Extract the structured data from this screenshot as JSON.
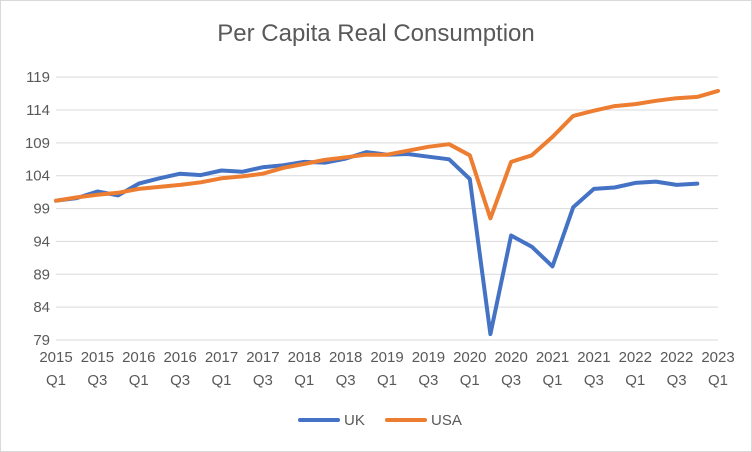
{
  "chart_data": {
    "type": "line",
    "title": "Per Capita Real Consumption",
    "xlabel": "",
    "ylabel": "",
    "ylim": [
      79,
      121
    ],
    "yticks": [
      79,
      84,
      89,
      94,
      99,
      104,
      109,
      114,
      119
    ],
    "grid": "horizontal",
    "legend_position": "bottom",
    "categories": [
      "2015 Q1",
      "2015 Q2",
      "2015 Q3",
      "2015 Q4",
      "2016 Q1",
      "2016 Q2",
      "2016 Q3",
      "2016 Q4",
      "2017 Q1",
      "2017 Q2",
      "2017 Q3",
      "2017 Q4",
      "2018 Q1",
      "2018 Q2",
      "2018 Q3",
      "2018 Q4",
      "2019 Q1",
      "2019 Q2",
      "2019 Q3",
      "2019 Q4",
      "2020 Q1",
      "2020 Q2",
      "2020 Q3",
      "2020 Q4",
      "2021 Q1",
      "2021 Q2",
      "2021 Q3",
      "2021 Q4",
      "2022 Q1",
      "2022 Q2",
      "2022 Q3",
      "2022 Q4",
      "2023 Q1"
    ],
    "x_tick_labels": [
      {
        "year": "2015",
        "q": "Q1"
      },
      {
        "year": "2015",
        "q": "Q3"
      },
      {
        "year": "2016",
        "q": "Q1"
      },
      {
        "year": "2016",
        "q": "Q3"
      },
      {
        "year": "2017",
        "q": "Q1"
      },
      {
        "year": "2017",
        "q": "Q3"
      },
      {
        "year": "2018",
        "q": "Q1"
      },
      {
        "year": "2018",
        "q": "Q3"
      },
      {
        "year": "2019",
        "q": "Q1"
      },
      {
        "year": "2019",
        "q": "Q3"
      },
      {
        "year": "2020",
        "q": "Q1"
      },
      {
        "year": "2020",
        "q": "Q3"
      },
      {
        "year": "2021",
        "q": "Q1"
      },
      {
        "year": "2021",
        "q": "Q3"
      },
      {
        "year": "2022",
        "q": "Q1"
      },
      {
        "year": "2022",
        "q": "Q3"
      },
      {
        "year": "2023",
        "q": "Q1"
      }
    ],
    "series": [
      {
        "name": "UK",
        "color": "#4472c4",
        "values": [
          100.2,
          100.6,
          101.6,
          101.0,
          102.8,
          103.6,
          104.3,
          104.1,
          104.8,
          104.6,
          105.3,
          105.6,
          106.1,
          106.0,
          106.6,
          107.6,
          107.2,
          107.3,
          106.9,
          106.5,
          103.5,
          79.9,
          94.9,
          93.2,
          90.2,
          99.2,
          102.0,
          102.2,
          102.9,
          103.1,
          102.6,
          102.8,
          null
        ]
      },
      {
        "name": "USA",
        "color": "#ed7d31",
        "values": [
          100.2,
          100.7,
          101.1,
          101.4,
          102.0,
          102.3,
          102.6,
          103.0,
          103.6,
          103.9,
          104.3,
          105.2,
          105.8,
          106.4,
          106.8,
          107.2,
          107.2,
          107.8,
          108.4,
          108.8,
          107.1,
          97.5,
          106.1,
          107.1,
          109.9,
          113.1,
          113.9,
          114.6,
          114.9,
          115.4,
          115.8,
          116.0,
          116.9
        ]
      }
    ]
  }
}
